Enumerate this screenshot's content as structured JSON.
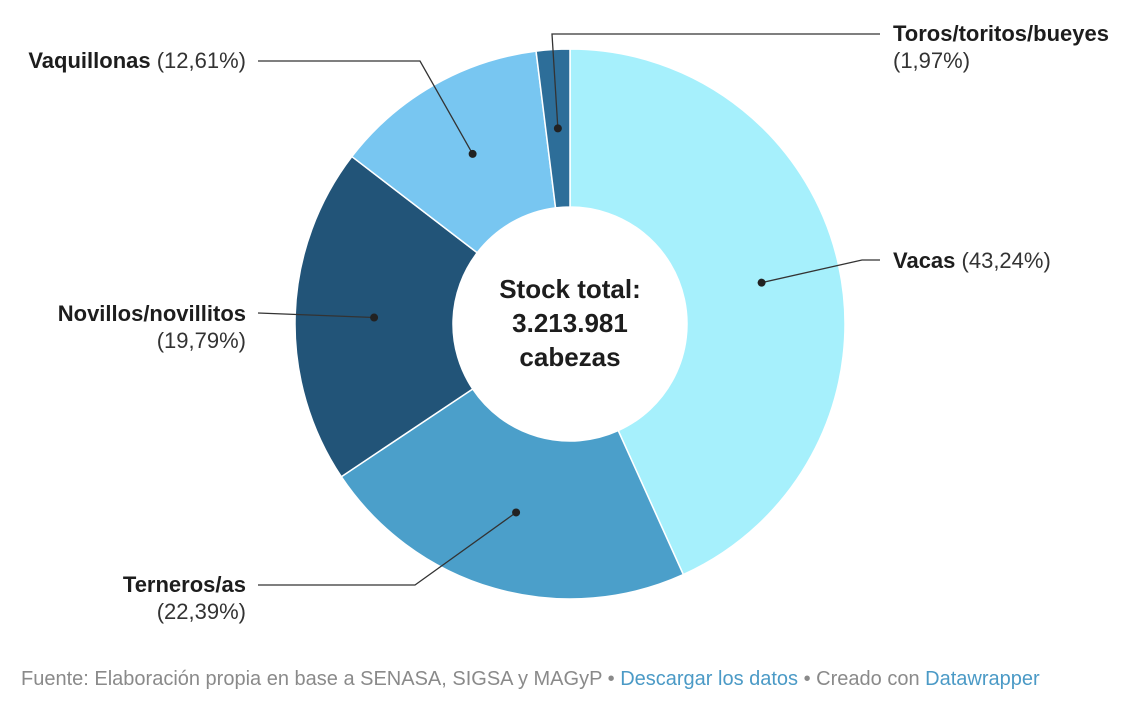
{
  "chart_data": {
    "type": "pie",
    "donut": true,
    "center_label": [
      "Stock total:",
      "3.213.981",
      "cabezas"
    ],
    "slices": [
      {
        "label": "Vacas",
        "value": 43.24,
        "value_text": "(43,24%)",
        "color": "#a6f0fc"
      },
      {
        "label": "Terneros/as",
        "value": 22.39,
        "value_text": "(22,39%)",
        "color": "#4b9fca"
      },
      {
        "label": "Novillos/novillitos",
        "value": 19.79,
        "value_text": "(19,79%)",
        "color": "#225478"
      },
      {
        "label": "Vaquillonas",
        "value": 12.61,
        "value_text": "(12,61%)",
        "color": "#78c6f1"
      },
      {
        "label": "Toros/toritos/bueyes",
        "value": 1.97,
        "value_text": "(1,97%)",
        "color": "#2d6e99"
      }
    ]
  },
  "footer": {
    "source": "Fuente: Elaboración propia en base a SENASA, SIGSA y MAGyP",
    "sep1": " • ",
    "download_link": "Descargar los datos",
    "sep2": " • Creado con ",
    "datawrapper_link": "Datawrapper"
  }
}
